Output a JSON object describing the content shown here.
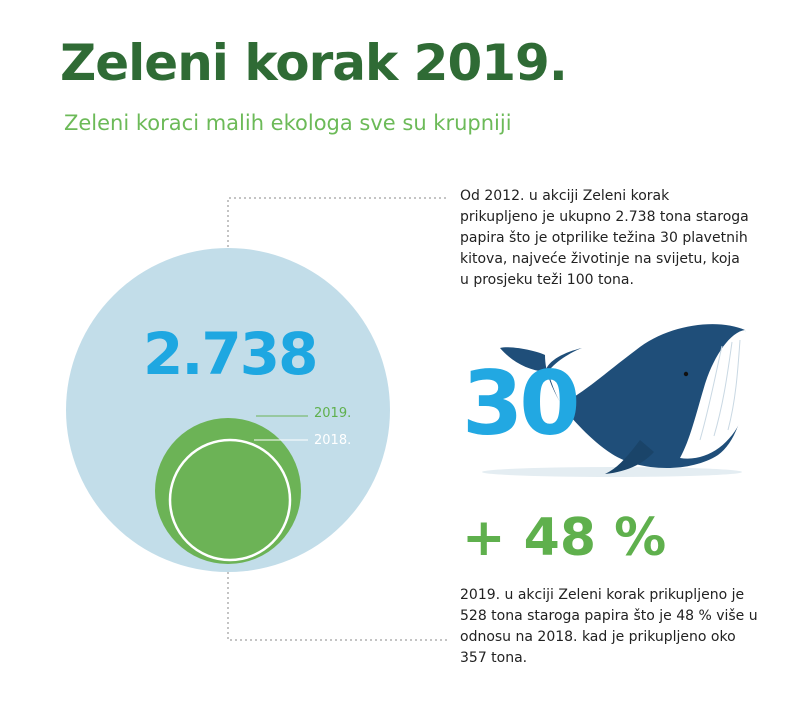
{
  "title": "Zeleni korak 2019.",
  "subtitle": "Zeleni koraci malih ekologa sve su krupniji",
  "total": {
    "value_text": "2.738",
    "intro_text": "Od 2012. u akciji Zeleni korak prikupljeno je ukupno 2.738 tona staroga papira što je otprilike težina 30 plavetnih kitova, najveće životinje na svijetu, koja u prosjeku teži 100 tona."
  },
  "whale": {
    "count_text": "30",
    "icon": "whale-icon"
  },
  "years": {
    "label_2019": "2019.",
    "label_2018": "2018."
  },
  "growth": {
    "value_text": "+ 48 %",
    "description": "2019. u akciji Zeleni korak prikupljeno je 528 tona staroga papira što je 48 % više u odnosu na 2018. kad je prikupljeno oko 357 tona."
  },
  "colors": {
    "title_green": "#2f6b35",
    "accent_green": "#5fb04d",
    "light_blue": "#c2dde9",
    "bright_blue": "#1ea7e1",
    "whale_navy": "#1f4e79"
  }
}
